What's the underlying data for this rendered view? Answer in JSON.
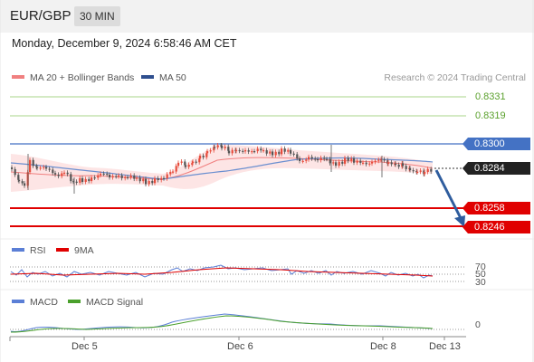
{
  "header": {
    "symbol": "EUR/GBP",
    "timeframe": "30 MIN"
  },
  "datetime": "Monday, December 9, 2024 6:58:46 AM CET",
  "legend": {
    "ma20": "MA 20 + Bollinger Bands",
    "ma50": "MA 50",
    "credit": "Research © 2024 Trading Central"
  },
  "levels": {
    "r2": "0.8331",
    "r1": "0.8319",
    "pivot": "0.8300",
    "last": "0.8284",
    "s1": "0.8258",
    "s2": "0.8246"
  },
  "rsi": {
    "label": "RSI",
    "ma_label": "9MA",
    "levels": [
      "70",
      "50",
      "30"
    ]
  },
  "macd": {
    "label": "MACD",
    "signal_label": "MACD Signal",
    "zero": "0"
  },
  "xaxis": {
    "labels": [
      "Dec 5",
      "Dec 6",
      "Dec 8",
      "Dec 13"
    ]
  },
  "colors": {
    "up": "#e74c3c",
    "down": "#555555",
    "ma20": "#f08080",
    "band": "#fde0e0",
    "ma50": "#6b8fd0",
    "pivot": "#4472c4",
    "resistance": "#5aa02c",
    "support": "#e00000",
    "last": "#222222",
    "arrow": "#2f5d9e",
    "rsi": "#5b7fd6",
    "rsi_ma": "#e00000",
    "macd": "#5b7fd6",
    "macd_signal": "#4aa02c"
  }
}
